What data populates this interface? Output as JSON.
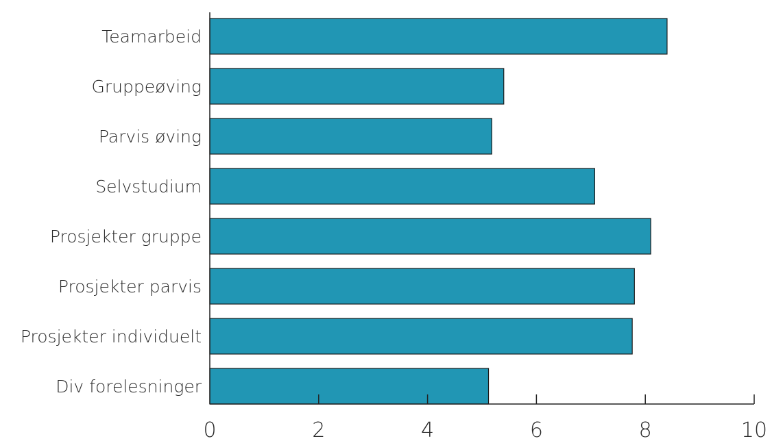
{
  "chart_data": {
    "type": "bar",
    "orientation": "horizontal",
    "categories": [
      "Teamarbeid",
      "Gruppeøving",
      "Parvis øving",
      "Selvstudium",
      "Prosjekter gruppe",
      "Prosjekter parvis",
      "Prosjekter individuelt",
      "Div forelesninger"
    ],
    "values": [
      8.4,
      5.4,
      5.18,
      7.07,
      8.1,
      7.8,
      7.76,
      5.12
    ],
    "xlim": [
      0,
      10
    ],
    "xticks": [
      "0",
      "2",
      "4",
      "6",
      "8",
      "10"
    ],
    "xtick_values": [
      0,
      2,
      4,
      6,
      8,
      10
    ],
    "title": "",
    "xlabel": "",
    "ylabel": "",
    "grid": false,
    "bar_color": "#2196b4"
  }
}
